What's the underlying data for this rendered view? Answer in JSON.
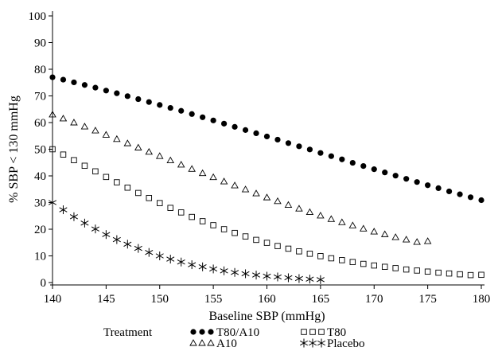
{
  "chart_data": {
    "type": "scatter",
    "xlabel": "Baseline SBP (mmHg)",
    "ylabel": "% SBP < 130 mmHg",
    "xlim": [
      140,
      180
    ],
    "ylim": [
      0,
      100
    ],
    "x_ticks": [
      "140",
      "145",
      "150",
      "155",
      "160",
      "165",
      "170",
      "175",
      "180"
    ],
    "y_ticks": [
      "0",
      "10",
      "20",
      "30",
      "40",
      "50",
      "60",
      "70",
      "80",
      "90",
      "100"
    ],
    "grid": false,
    "legend": {
      "title": "Treatment",
      "placement": "bottom"
    },
    "series": [
      {
        "name": "T80/A10",
        "marker": "filled-circle",
        "color": "#000000",
        "x": [
          140,
          141,
          142,
          143,
          144,
          145,
          146,
          147,
          148,
          149,
          150,
          151,
          152,
          153,
          154,
          155,
          156,
          157,
          158,
          159,
          160,
          161,
          162,
          163,
          164,
          165,
          166,
          167,
          168,
          169,
          170,
          171,
          172,
          173,
          174,
          175,
          176,
          177,
          178,
          179,
          180
        ],
        "y": [
          77,
          76.1,
          75.1,
          74.1,
          73.1,
          72,
          71,
          69.9,
          68.8,
          67.7,
          66.6,
          65.5,
          64.4,
          63.2,
          62,
          60.8,
          59.6,
          58.4,
          57.2,
          56,
          54.8,
          53.6,
          52.3,
          51.1,
          49.9,
          48.6,
          47.4,
          46.2,
          44.9,
          43.7,
          42.5,
          41.3,
          40.1,
          38.9,
          37.7,
          36.5,
          35.4,
          34.2,
          33.1,
          32,
          30.9
        ]
      },
      {
        "name": "A10",
        "marker": "open-triangle",
        "color": "#000000",
        "x": [
          140,
          141,
          142,
          143,
          144,
          145,
          146,
          147,
          148,
          149,
          150,
          151,
          152,
          153,
          154,
          155,
          156,
          157,
          158,
          159,
          160,
          161,
          162,
          163,
          164,
          165,
          166,
          167,
          168,
          169,
          170,
          171,
          172,
          173,
          174,
          175
        ],
        "y": [
          63,
          61.5,
          60,
          58.5,
          57,
          55.4,
          53.8,
          52.2,
          50.6,
          49,
          47.4,
          45.8,
          44.2,
          42.6,
          41,
          39.5,
          37.9,
          36.4,
          34.9,
          33.4,
          31.9,
          30.5,
          29.1,
          27.7,
          26.4,
          25.1,
          23.8,
          22.6,
          21.4,
          20.2,
          19.1,
          18.1,
          17,
          16.1,
          15.2,
          15.5
        ]
      },
      {
        "name": "T80",
        "marker": "open-square",
        "color": "#000000",
        "x": [
          140,
          141,
          142,
          143,
          144,
          145,
          146,
          147,
          148,
          149,
          150,
          151,
          152,
          153,
          154,
          155,
          156,
          157,
          158,
          159,
          160,
          161,
          162,
          163,
          164,
          165,
          166,
          167,
          168,
          169,
          170,
          171,
          172,
          173,
          174,
          175,
          176,
          177,
          178,
          179,
          180
        ],
        "y": [
          50,
          48,
          45.9,
          43.8,
          41.7,
          39.6,
          37.6,
          35.6,
          33.6,
          31.7,
          29.8,
          28,
          26.3,
          24.6,
          23,
          21.5,
          20,
          18.6,
          17.3,
          16,
          14.9,
          13.7,
          12.7,
          11.7,
          10.8,
          9.9,
          9.1,
          8.4,
          7.7,
          7,
          6.4,
          5.9,
          5.4,
          4.9,
          4.5,
          4.1,
          3.7,
          3.4,
          3.1,
          2.8,
          2.9
        ]
      },
      {
        "name": "Placebo",
        "marker": "asterisk",
        "color": "#000000",
        "x": [
          140,
          141,
          142,
          143,
          144,
          145,
          146,
          147,
          148,
          149,
          150,
          151,
          152,
          153,
          154,
          155,
          156,
          157,
          158,
          159,
          160,
          161,
          162,
          163,
          164,
          165
        ],
        "y": [
          30,
          27.3,
          24.7,
          22.3,
          20.1,
          18,
          16.1,
          14.4,
          12.8,
          11.3,
          10,
          8.8,
          7.7,
          6.7,
          5.9,
          5.1,
          4.4,
          3.8,
          3.3,
          2.8,
          2.4,
          2.1,
          1.8,
          1.5,
          1.3,
          1.1
        ]
      }
    ]
  }
}
